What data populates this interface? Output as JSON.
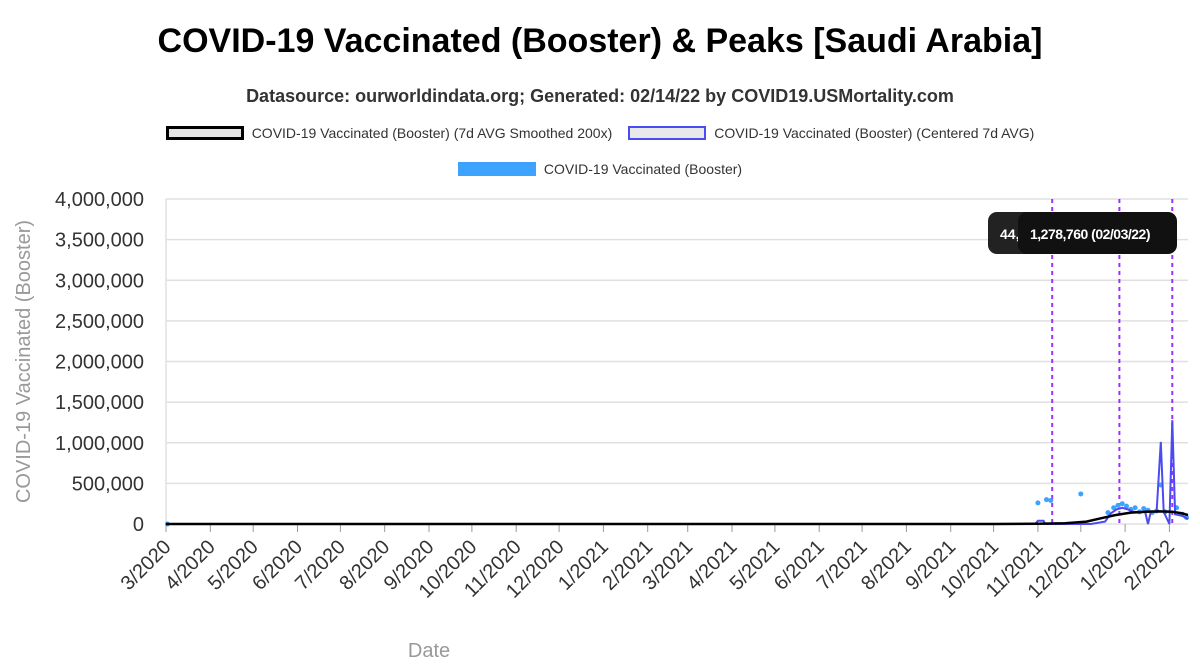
{
  "title": "COVID-19 Vaccinated (Booster) & Peaks [Saudi Arabia]",
  "subtitle": "Datasource: ourworldindata.org; Generated: 02/14/22 by COVID19.USMortality.com",
  "legend": [
    {
      "label": "COVID-19 Vaccinated (Booster) (7d AVG Smoothed 200x)",
      "style": "smooth"
    },
    {
      "label": "COVID-19 Vaccinated (Booster) (Centered 7d AVG)",
      "style": "avg"
    },
    {
      "label": "COVID-19 Vaccinated (Booster)",
      "style": "raw"
    }
  ],
  "colors": {
    "smooth": "#000000",
    "avg": "#4b4bf0",
    "raw": "#3ea2ff",
    "peak_line": "#9b30ff",
    "grid": "#e0e0e0"
  },
  "chart_data": {
    "type": "line",
    "xlabel": "Date",
    "ylabel": "COVID-19 Vaccinated (Booster)",
    "ylim": [
      0,
      4000000
    ],
    "yticks": [
      0,
      500000,
      1000000,
      1500000,
      2000000,
      2500000,
      3000000,
      3500000,
      4000000
    ],
    "ytick_labels": [
      "0",
      "500,000",
      "1,000,000",
      "1,500,000",
      "2,000,000",
      "2,500,000",
      "3,000,000",
      "3,500,000",
      "4,000,000"
    ],
    "xlim": [
      "2020-03-01",
      "2022-02-14"
    ],
    "xtick_labels": [
      "3/2020",
      "4/2020",
      "5/2020",
      "6/2020",
      "7/2020",
      "8/2020",
      "9/2020",
      "10/2020",
      "11/2020",
      "12/2020",
      "1/2021",
      "2/2021",
      "3/2021",
      "4/2021",
      "5/2021",
      "6/2021",
      "7/2021",
      "8/2021",
      "9/2021",
      "10/2021",
      "11/2021",
      "12/2021",
      "1/2022",
      "2/2022"
    ],
    "xtick_dates": [
      "2020-03-01",
      "2020-04-01",
      "2020-05-01",
      "2020-06-01",
      "2020-07-01",
      "2020-08-01",
      "2020-09-01",
      "2020-10-01",
      "2020-11-01",
      "2020-12-01",
      "2021-01-01",
      "2021-02-01",
      "2021-03-01",
      "2021-04-01",
      "2021-05-01",
      "2021-06-01",
      "2021-07-01",
      "2021-08-01",
      "2021-09-01",
      "2021-10-01",
      "2021-11-01",
      "2021-12-01",
      "2022-01-01",
      "2022-02-01"
    ],
    "series": [
      {
        "name": "COVID-19 Vaccinated (Booster)",
        "kind": "scatter",
        "points": [
          [
            "2020-03-02",
            0
          ],
          [
            "2021-11-01",
            260000
          ],
          [
            "2021-11-07",
            300000
          ],
          [
            "2021-11-10",
            290000
          ],
          [
            "2021-12-01",
            370000
          ],
          [
            "2021-12-20",
            140000
          ],
          [
            "2021-12-24",
            200000
          ],
          [
            "2021-12-27",
            230000
          ],
          [
            "2021-12-30",
            250000
          ],
          [
            "2022-01-02",
            220000
          ],
          [
            "2022-01-05",
            180000
          ],
          [
            "2022-01-08",
            200000
          ],
          [
            "2022-01-11",
            150000
          ],
          [
            "2022-01-14",
            190000
          ],
          [
            "2022-01-17",
            170000
          ],
          [
            "2022-01-20",
            140000
          ],
          [
            "2022-01-23",
            160000
          ],
          [
            "2022-01-26",
            480000
          ],
          [
            "2022-01-29",
            150000
          ],
          [
            "2022-02-06",
            200000
          ],
          [
            "2022-02-10",
            120000
          ],
          [
            "2022-02-13",
            80000
          ]
        ]
      },
      {
        "name": "COVID-19 Vaccinated (Booster) (Centered 7d AVG)",
        "kind": "line",
        "points": [
          [
            "2020-03-01",
            0
          ],
          [
            "2021-10-30",
            0
          ],
          [
            "2021-11-01",
            40000
          ],
          [
            "2021-11-05",
            40000
          ],
          [
            "2021-11-06",
            0
          ],
          [
            "2021-12-08",
            0
          ],
          [
            "2021-12-18",
            30000
          ],
          [
            "2021-12-22",
            130000
          ],
          [
            "2021-12-26",
            180000
          ],
          [
            "2021-12-30",
            200000
          ],
          [
            "2022-01-03",
            180000
          ],
          [
            "2022-01-07",
            150000
          ],
          [
            "2022-01-11",
            140000
          ],
          [
            "2022-01-15",
            150000
          ],
          [
            "2022-01-17",
            0
          ],
          [
            "2022-01-19",
            150000
          ],
          [
            "2022-01-23",
            150000
          ],
          [
            "2022-01-26",
            1010000
          ],
          [
            "2022-01-28",
            150000
          ],
          [
            "2022-02-01",
            0
          ],
          [
            "2022-02-03",
            1278760
          ],
          [
            "2022-02-05",
            120000
          ],
          [
            "2022-02-10",
            100000
          ],
          [
            "2022-02-14",
            60000
          ]
        ]
      },
      {
        "name": "COVID-19 Vaccinated (Booster) (7d AVG Smoothed 200x)",
        "kind": "line",
        "points": [
          [
            "2020-03-01",
            0
          ],
          [
            "2021-10-01",
            0
          ],
          [
            "2021-11-01",
            3000
          ],
          [
            "2021-11-20",
            10000
          ],
          [
            "2021-12-05",
            30000
          ],
          [
            "2021-12-15",
            70000
          ],
          [
            "2021-12-25",
            110000
          ],
          [
            "2022-01-05",
            140000
          ],
          [
            "2022-01-15",
            150000
          ],
          [
            "2022-01-25",
            155000
          ],
          [
            "2022-02-03",
            150000
          ],
          [
            "2022-02-10",
            130000
          ],
          [
            "2022-02-14",
            110000
          ]
        ]
      }
    ],
    "peak_lines": [
      "2021-11-11",
      "2021-12-28",
      "2022-02-03"
    ],
    "peak_labels": [
      {
        "text": "44,",
        "date": "2021-11-11"
      },
      {
        "text": "1,278,760 (02/03/22)",
        "date": "2022-02-03"
      }
    ],
    "grid": true,
    "legend_position": "top"
  }
}
